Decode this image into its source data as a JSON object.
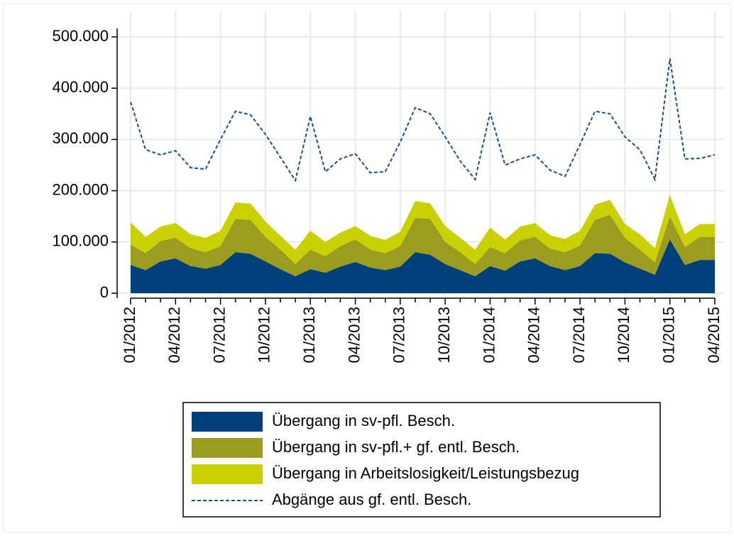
{
  "chart_data": {
    "type": "stacked-area",
    "categories": [
      "01/2012",
      null,
      null,
      "04/2012",
      null,
      null,
      "07/2012",
      null,
      null,
      "10/2012",
      null,
      null,
      "01/2013",
      null,
      null,
      "04/2013",
      null,
      null,
      "07/2013",
      null,
      null,
      "10/2013",
      null,
      null,
      "01/2014",
      null,
      null,
      "04/2014",
      null,
      null,
      "07/2014",
      null,
      null,
      "10/2014",
      null,
      null,
      "01/2015",
      null,
      null,
      "04/2015"
    ],
    "series": [
      {
        "name": "Übergang in sv-pfl. Besch.",
        "color": "#00407a",
        "kind": "area",
        "values": [
          55000,
          45000,
          62000,
          68000,
          53000,
          48000,
          55000,
          80000,
          77000,
          62000,
          47000,
          33000,
          47000,
          40000,
          52000,
          61000,
          50000,
          45000,
          52000,
          80000,
          75000,
          57000,
          45000,
          33000,
          53000,
          44000,
          62000,
          68000,
          53000,
          45000,
          53000,
          78000,
          77000,
          60000,
          48000,
          36000,
          105000,
          55000,
          65000,
          65000
        ]
      },
      {
        "name": "Übergang in sv-pfl.+ gf. entl. Besch.",
        "color": "#9c9c20",
        "kind": "area",
        "values": [
          40000,
          33000,
          40000,
          40000,
          35000,
          32000,
          37000,
          65000,
          66000,
          48000,
          38000,
          24000,
          38000,
          32000,
          40000,
          44000,
          35000,
          33000,
          40000,
          67000,
          70000,
          43000,
          35000,
          24000,
          37000,
          34000,
          41000,
          42000,
          34000,
          35000,
          40000,
          65000,
          76000,
          48000,
          37000,
          24000,
          45000,
          35000,
          45000,
          45000
        ]
      },
      {
        "name": "Übergang in Arbeitslosigkeit/Leistungsbezug",
        "color": "#c9d200",
        "kind": "area",
        "values": [
          43000,
          32000,
          28000,
          29000,
          27000,
          28000,
          30000,
          32000,
          32000,
          30000,
          27000,
          28000,
          37000,
          28000,
          26000,
          26000,
          27000,
          26000,
          28000,
          33000,
          30000,
          31000,
          28000,
          28000,
          38000,
          27000,
          27000,
          27000,
          26000,
          26000,
          29000,
          30000,
          29000,
          27000,
          30000,
          28000,
          42000,
          25000,
          25000,
          25000
        ]
      },
      {
        "name": "Abgänge aus gf. entl. Besch.",
        "color": "#1b4f86",
        "kind": "dashed-line",
        "values": [
          373000,
          280000,
          270000,
          278000,
          245000,
          242000,
          300000,
          355000,
          348000,
          310000,
          265000,
          220000,
          345000,
          237000,
          262000,
          272000,
          235000,
          237000,
          295000,
          362000,
          350000,
          305000,
          258000,
          222000,
          352000,
          250000,
          262000,
          270000,
          240000,
          228000,
          290000,
          355000,
          350000,
          305000,
          280000,
          222000,
          458000,
          262000,
          263000,
          270000
        ]
      }
    ],
    "ylim": [
      0,
      500000
    ],
    "yticks": [
      0,
      {
        "value": 100000,
        "label": "100.000"
      },
      {
        "value": 200000,
        "label": "200.000"
      },
      {
        "value": 300000,
        "label": "300.000"
      },
      {
        "value": 400000,
        "label": "400.000"
      },
      {
        "value": 500000,
        "label": "500.000"
      }
    ],
    "grid": true,
    "legend": "bottom"
  }
}
